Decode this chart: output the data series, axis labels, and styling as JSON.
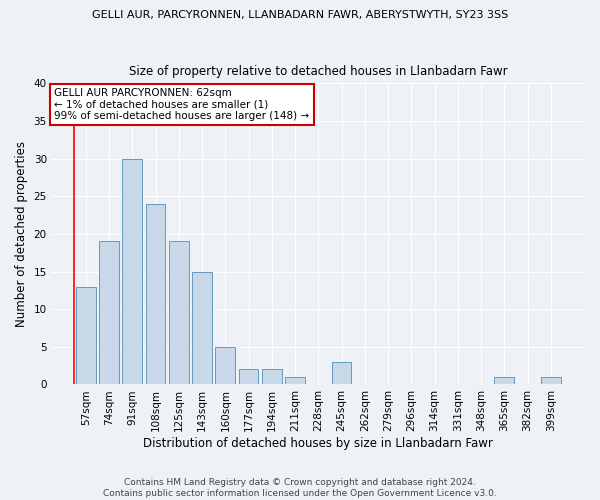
{
  "title1": "GELLI AUR, PARCYRONNEN, LLANBADARN FAWR, ABERYSTWYTH, SY23 3SS",
  "title2": "Size of property relative to detached houses in Llanbadarn Fawr",
  "xlabel": "Distribution of detached houses by size in Llanbadarn Fawr",
  "ylabel": "Number of detached properties",
  "categories": [
    "57sqm",
    "74sqm",
    "91sqm",
    "108sqm",
    "125sqm",
    "143sqm",
    "160sqm",
    "177sqm",
    "194sqm",
    "211sqm",
    "228sqm",
    "245sqm",
    "262sqm",
    "279sqm",
    "296sqm",
    "314sqm",
    "331sqm",
    "348sqm",
    "365sqm",
    "382sqm",
    "399sqm"
  ],
  "values": [
    13,
    19,
    30,
    24,
    19,
    15,
    5,
    2,
    2,
    1,
    0,
    3,
    0,
    0,
    0,
    0,
    0,
    0,
    1,
    0,
    1
  ],
  "bar_color": "#c8d8e8",
  "bar_edge_color": "#6699bb",
  "annotation_title": "GELLI AUR PARCYRONNEN: 62sqm",
  "annotation_line1": "← 1% of detached houses are smaller (1)",
  "annotation_line2": "99% of semi-detached houses are larger (148) →",
  "annotation_box_color": "#ffffff",
  "annotation_box_edge": "#cc0000",
  "ylim": [
    0,
    40
  ],
  "yticks": [
    0,
    5,
    10,
    15,
    20,
    25,
    30,
    35,
    40
  ],
  "footer1": "Contains HM Land Registry data © Crown copyright and database right 2024.",
  "footer2": "Contains public sector information licensed under the Open Government Licence v3.0.",
  "bg_color": "#eef2f7",
  "grid_color": "#ffffff",
  "title1_fontsize": 8.0,
  "title2_fontsize": 8.5,
  "xlabel_fontsize": 8.5,
  "ylabel_fontsize": 8.5,
  "tick_fontsize": 7.5,
  "footer_fontsize": 6.5,
  "annotation_fontsize": 7.5
}
